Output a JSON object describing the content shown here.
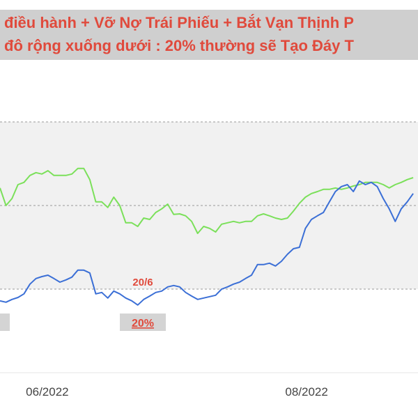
{
  "chart_data": {
    "type": "line",
    "title_lines": [
      "điều hành + Vỡ Nợ Trái Phiếu + Bắt Vạn Thịnh P",
      "đô rộng xuống dưới : 20% thường sẽ Tạo Đáy T"
    ],
    "annotations": [
      "20/6",
      "20%"
    ],
    "xlim": [
      0,
      69.8
    ],
    "ylim": [
      0,
      120
    ],
    "xticks": [
      {
        "value": 7.9,
        "label": "06/2022"
      },
      {
        "value": 51.2,
        "label": "08/2022"
      }
    ],
    "series": [
      {
        "color": "#7be05a",
        "values": [
          66.3,
          60,
          62.5,
          67.5,
          68.3,
          70.8,
          71.8,
          71.3,
          72.5,
          70.8,
          70.8,
          70.8,
          71.3,
          73.3,
          73.3,
          69.3,
          61.3,
          61.3,
          59.3,
          63,
          60,
          53.8,
          53.8,
          52.5,
          55.5,
          55,
          57.5,
          58.8,
          60.5,
          56.8,
          57,
          56.3,
          54.3,
          50,
          52.5,
          51.8,
          50.5,
          53.3,
          53.8,
          54.3,
          53.8,
          54.3,
          54.3,
          56.3,
          57,
          56.3,
          55.5,
          55,
          55.5,
          58,
          60.8,
          63,
          64.3,
          65,
          65.8,
          65.8,
          66.3,
          65.8,
          66.3,
          67,
          67.5,
          68.3,
          68.3,
          68.3,
          67.5,
          66.3,
          67.5,
          68.3,
          69.3,
          70
        ]
      },
      {
        "color": "#3b6fd6",
        "values": [
          25.8,
          25.3,
          26.3,
          27,
          28.3,
          31.8,
          33.8,
          34.5,
          35,
          33.8,
          32.5,
          33.3,
          34.3,
          36.8,
          36.8,
          35.8,
          28.3,
          28.8,
          26.8,
          29.3,
          28.3,
          26.8,
          25.8,
          24.3,
          26.3,
          27.5,
          28.8,
          29.3,
          30.8,
          31.3,
          30.8,
          28.8,
          27.5,
          26.3,
          26.8,
          27.3,
          27.8,
          30,
          30.8,
          31.8,
          32.5,
          33.8,
          35,
          38.8,
          38.8,
          39.3,
          38.3,
          40,
          42.5,
          44.5,
          45,
          51.8,
          55,
          56.3,
          57.5,
          61.3,
          65,
          66.8,
          67.5,
          65,
          68.8,
          67.5,
          68.3,
          66.8,
          62.5,
          58.8,
          54.3,
          58.8,
          61.3,
          64.3
        ]
      }
    ]
  }
}
